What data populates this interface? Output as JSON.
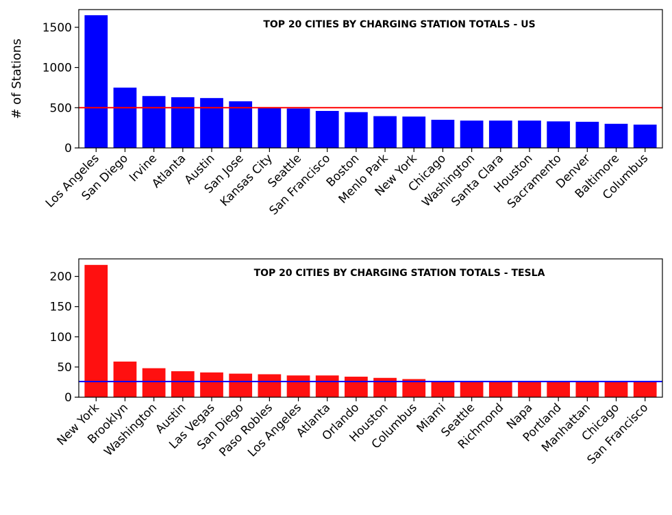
{
  "chart_data": [
    {
      "type": "bar",
      "title": "TOP 20 CITIES BY CHARGING STATION TOTALS - US",
      "xlabel": "",
      "ylabel": "# of Stations",
      "ylim": [
        0,
        1720
      ],
      "yticks": [
        0,
        500,
        1000,
        1500
      ],
      "bar_color": "#0000ff",
      "reference_line": {
        "value": 500,
        "color": "#ff0000"
      },
      "categories": [
        "Los Angeles",
        "San Diego",
        "Irvine",
        "Atlanta",
        "Austin",
        "San Jose",
        "Kansas City",
        "Seattle",
        "San Francisco",
        "Boston",
        "Menlo Park",
        "New York",
        "Chicago",
        "Washington",
        "Santa Clara",
        "Houston",
        "Sacramento",
        "Denver",
        "Baltimore",
        "Columbus"
      ],
      "values": [
        1650,
        750,
        645,
        630,
        620,
        580,
        500,
        490,
        460,
        445,
        395,
        390,
        350,
        340,
        340,
        340,
        330,
        325,
        300,
        290
      ]
    },
    {
      "type": "bar",
      "title": "TOP 20 CITIES BY CHARGING STATION TOTALS - TESLA",
      "xlabel": "",
      "ylabel": "",
      "ylim": [
        0,
        229
      ],
      "yticks": [
        0,
        50,
        100,
        150,
        200
      ],
      "bar_color": "#ff1010",
      "reference_line": {
        "value": 26,
        "color": "#0000ff"
      },
      "categories": [
        "New York",
        "Brooklyn",
        "Washington",
        "Austin",
        "Las Vegas",
        "San Diego",
        "Paso Robles",
        "Los Angeles",
        "Atlanta",
        "Orlando",
        "Houston",
        "Columbus",
        "Miami",
        "Seattle",
        "Richmond",
        "Napa",
        "Portland",
        "Manhattan",
        "Chicago",
        "San Francisco"
      ],
      "values": [
        219,
        59,
        48,
        43,
        41,
        39,
        38,
        36,
        36,
        34,
        32,
        30,
        25,
        25,
        25,
        25,
        25,
        25,
        25,
        25
      ]
    }
  ]
}
